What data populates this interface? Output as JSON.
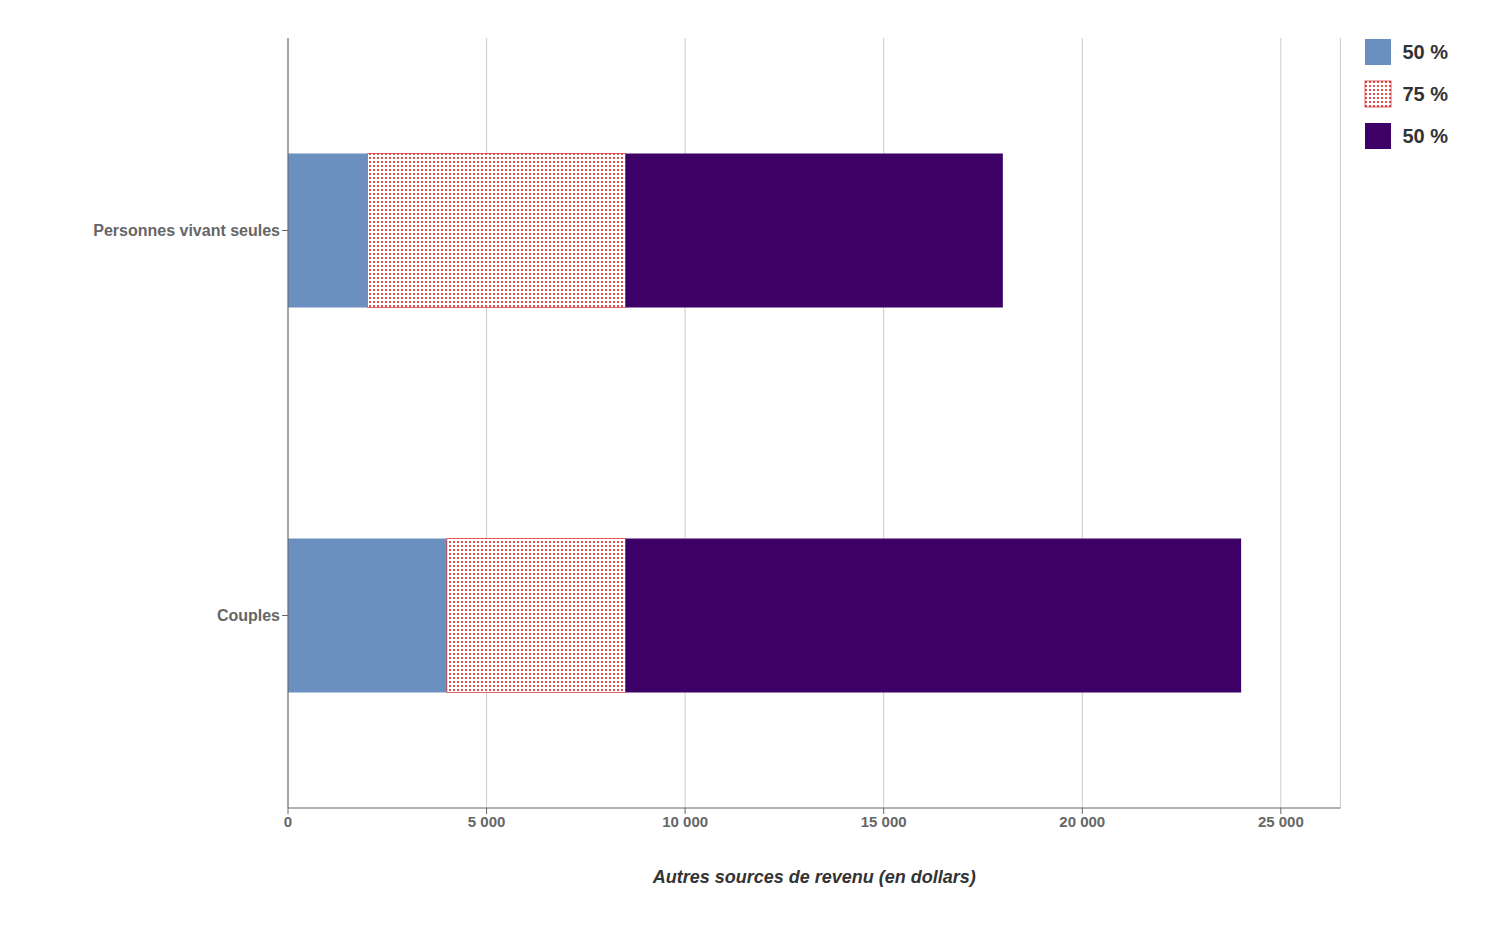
{
  "chart_data": {
    "type": "bar",
    "orientation": "horizontal",
    "stacked": true,
    "categories": [
      "Couples",
      "Personnes vivant seules"
    ],
    "series": [
      {
        "name": "50 %",
        "color": "#6B8FBF",
        "values": [
          4000,
          2000
        ]
      },
      {
        "name": "75 %",
        "color": "#CC0000",
        "values": [
          4500,
          6500
        ]
      },
      {
        "name": "50 %",
        "color": "#3D0066",
        "values": [
          15500,
          9500
        ]
      }
    ],
    "xlabel": "Autres sources de revenu (en dollars)",
    "xlim": [
      0,
      26500
    ],
    "xticks": [
      0,
      {
        "value": 5000,
        "label": "5 000"
      },
      {
        "value": 10000,
        "label": "10 000"
      },
      {
        "value": 15000,
        "label": "15 000"
      },
      {
        "value": 20000,
        "label": "20 000"
      },
      {
        "value": 25000,
        "label": "25 000"
      }
    ],
    "grid": "x",
    "legend": "upper right"
  }
}
